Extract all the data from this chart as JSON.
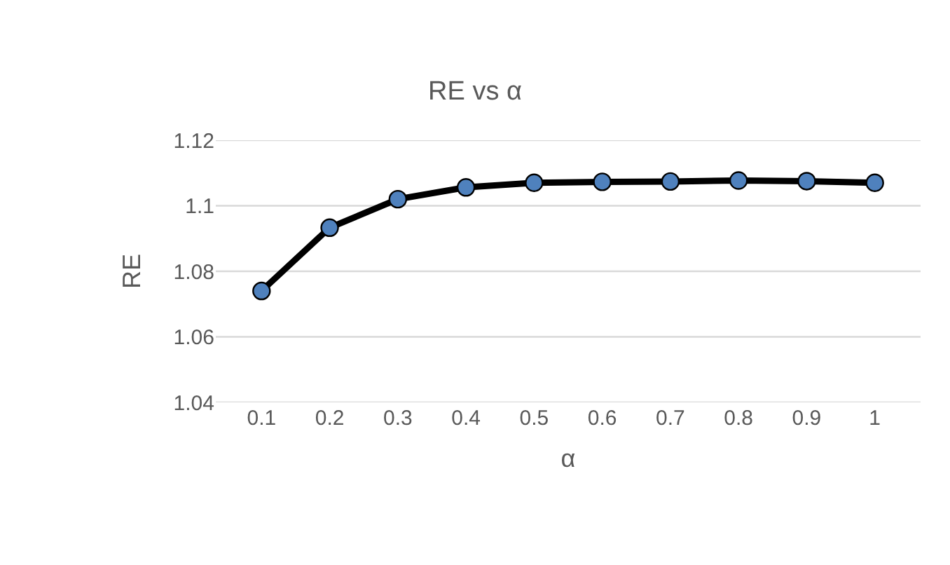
{
  "chart_data": {
    "type": "line",
    "title": "RE vs α",
    "xlabel": "α",
    "ylabel": "RE",
    "categories": [
      "0.1",
      "0.2",
      "0.3",
      "0.4",
      "0.5",
      "0.6",
      "0.7",
      "0.8",
      "0.9",
      "1"
    ],
    "series": [
      {
        "color": "#000000",
        "colors": [
          "#4f81bd",
          "#4f81bd",
          "#4f81bd",
          "#4f81bd",
          "#4f81bd",
          "#4f81bd",
          "#4f81bd",
          "#4f81bd",
          "#4f81bd",
          "#4f81bd"
        ],
        "values": [
          1.074,
          1.0933,
          1.102,
          1.1056,
          1.107,
          1.1073,
          1.1074,
          1.1077,
          1.1075,
          1.107
        ]
      }
    ],
    "marker": "circle",
    "line_style": "solid",
    "ylim": [
      1.04,
      1.12
    ],
    "yticks": [
      1.04,
      1.06,
      1.08,
      1.1,
      1.12
    ],
    "grid": "y",
    "legend": false
  }
}
